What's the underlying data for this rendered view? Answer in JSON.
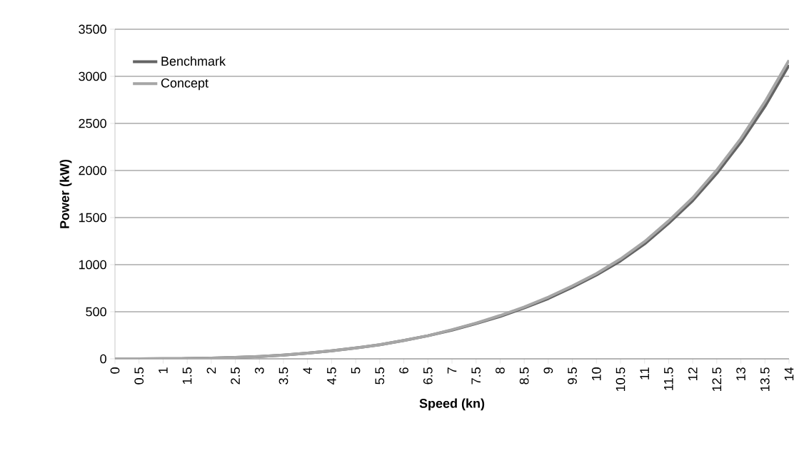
{
  "chart_data": {
    "type": "line",
    "xlabel": "Speed (kn)",
    "ylabel": "Power (kW)",
    "categories": [
      "0",
      "0.5",
      "1",
      "1.5",
      "2",
      "2.5",
      "3",
      "3.5",
      "4",
      "4.5",
      "5",
      "5.5",
      "6",
      "6.5",
      "7",
      "7.5",
      "8",
      "8.5",
      "9",
      "9.5",
      "10",
      "10.5",
      "11",
      "11.5",
      "12",
      "12.5",
      "13",
      "13.5",
      "14"
    ],
    "series": [
      {
        "name": "Benchmark",
        "color": "#646464",
        "values": [
          0,
          0,
          1,
          3,
          8,
          15,
          25,
          40,
          60,
          85,
          115,
          150,
          195,
          245,
          305,
          375,
          450,
          540,
          640,
          760,
          890,
          1040,
          1220,
          1440,
          1680,
          1970,
          2300,
          2680,
          3120
        ]
      },
      {
        "name": "Concept",
        "color": "#a6a6a6",
        "values": [
          0,
          0,
          1,
          3,
          8,
          15,
          25,
          40,
          60,
          85,
          115,
          150,
          195,
          245,
          310,
          380,
          460,
          550,
          655,
          775,
          905,
          1060,
          1245,
          1465,
          1710,
          2005,
          2340,
          2730,
          3170
        ]
      }
    ],
    "ylim": [
      0,
      3500
    ],
    "yticks": [
      0,
      500,
      1000,
      1500,
      2000,
      2500,
      3000,
      3500
    ],
    "grid": "y",
    "legend": "top left",
    "marker": "none",
    "line_style": "solid"
  }
}
